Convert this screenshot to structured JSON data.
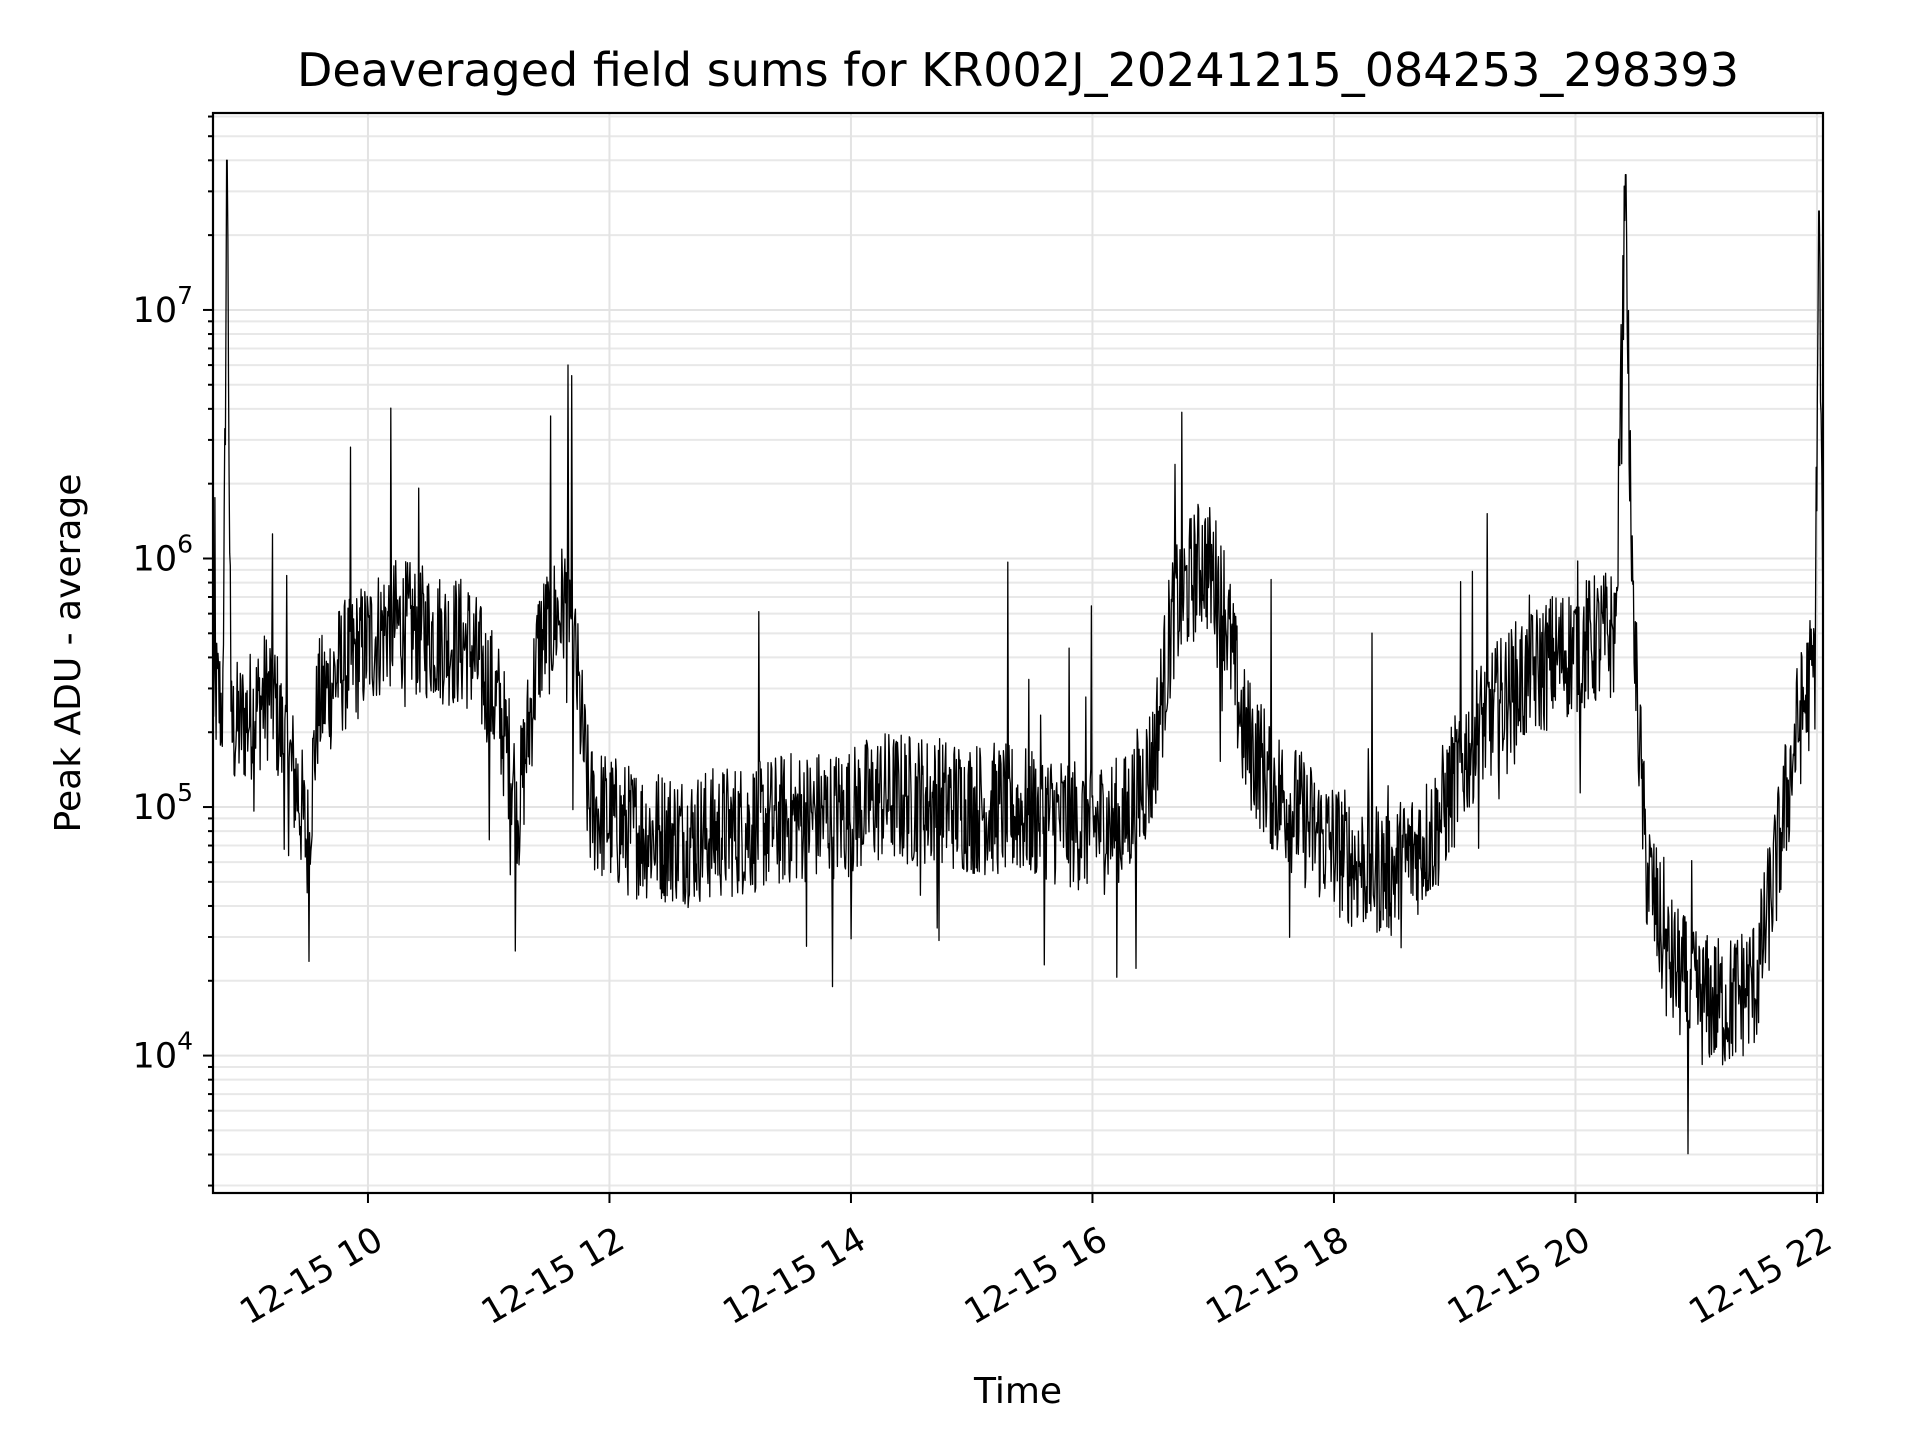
{
  "chart_data": {
    "type": "line",
    "title": "Deaveraged field sums for KR002J_20241215_084253_298393",
    "xlabel": "Time",
    "ylabel": "Peak ADU - average",
    "yscale": "log",
    "grid": true,
    "xlim": [
      "2024-12-15 08:43",
      "2024-12-15 22:03"
    ],
    "ylim": [
      2800,
      62000000
    ],
    "x_ticks": [
      {
        "value": "2024-12-15 10:00",
        "label": "12-15 10"
      },
      {
        "value": "2024-12-15 12:00",
        "label": "12-15 12"
      },
      {
        "value": "2024-12-15 14:00",
        "label": "12-15 14"
      },
      {
        "value": "2024-12-15 16:00",
        "label": "12-15 16"
      },
      {
        "value": "2024-12-15 18:00",
        "label": "12-15 18"
      },
      {
        "value": "2024-12-15 20:00",
        "label": "12-15 20"
      },
      {
        "value": "2024-12-15 22:00",
        "label": "12-15 22"
      }
    ],
    "y_ticks": [
      {
        "value": 10000,
        "base": "10",
        "exp": "4"
      },
      {
        "value": 100000,
        "base": "10",
        "exp": "5"
      },
      {
        "value": 1000000,
        "base": "10",
        "exp": "6"
      },
      {
        "value": 10000000,
        "base": "10",
        "exp": "7"
      }
    ],
    "series": [
      {
        "color": "#000000",
        "x": [
          "2024-12-15 08:43",
          "2024-12-15 08:48",
          "2024-12-15 08:50",
          "2024-12-15 08:52",
          "2024-12-15 08:58",
          "2024-12-15 09:05",
          "2024-12-15 09:12",
          "2024-12-15 09:18",
          "2024-12-15 09:25",
          "2024-12-15 09:30",
          "2024-12-15 09:35",
          "2024-12-15 09:45",
          "2024-12-15 10:00",
          "2024-12-15 10:10",
          "2024-12-15 10:30",
          "2024-12-15 10:50",
          "2024-12-15 11:05",
          "2024-12-15 11:15",
          "2024-12-15 11:25",
          "2024-12-15 11:40",
          "2024-12-15 11:50",
          "2024-12-15 12:10",
          "2024-12-15 12:40",
          "2024-12-15 13:00",
          "2024-12-15 13:30",
          "2024-12-15 14:00",
          "2024-12-15 14:15",
          "2024-12-15 14:40",
          "2024-12-15 15:00",
          "2024-12-15 15:30",
          "2024-12-15 15:55",
          "2024-12-15 16:15",
          "2024-12-15 16:30",
          "2024-12-15 16:40",
          "2024-12-15 16:55",
          "2024-12-15 17:05",
          "2024-12-15 17:15",
          "2024-12-15 17:30",
          "2024-12-15 17:50",
          "2024-12-15 18:10",
          "2024-12-15 18:30",
          "2024-12-15 18:50",
          "2024-12-15 19:10",
          "2024-12-15 19:30",
          "2024-12-15 19:50",
          "2024-12-15 20:05",
          "2024-12-15 20:20",
          "2024-12-15 20:25",
          "2024-12-15 20:28",
          "2024-12-15 20:35",
          "2024-12-15 20:45",
          "2024-12-15 21:00",
          "2024-12-15 21:15",
          "2024-12-15 21:30",
          "2024-12-15 21:40",
          "2024-12-15 21:50",
          "2024-12-15 21:59",
          "2024-12-15 22:01",
          "2024-12-15 22:03"
        ],
        "y": [
          300000,
          250000,
          40000000,
          200000,
          220000,
          250000,
          300000,
          180000,
          120000,
          70000,
          250000,
          350000,
          450000,
          550000,
          500000,
          450000,
          250000,
          100000,
          450000,
          700000,
          100000,
          80000,
          75000,
          80000,
          90000,
          95000,
          110000,
          105000,
          100000,
          95000,
          85000,
          85000,
          150000,
          600000,
          1000000,
          700000,
          200000,
          120000,
          80000,
          60000,
          55000,
          80000,
          200000,
          300000,
          400000,
          450000,
          500000,
          35000000,
          700000,
          60000,
          25000,
          17000,
          16000,
          20000,
          60000,
          200000,
          380000,
          25000000,
          500000
        ]
      }
    ]
  }
}
